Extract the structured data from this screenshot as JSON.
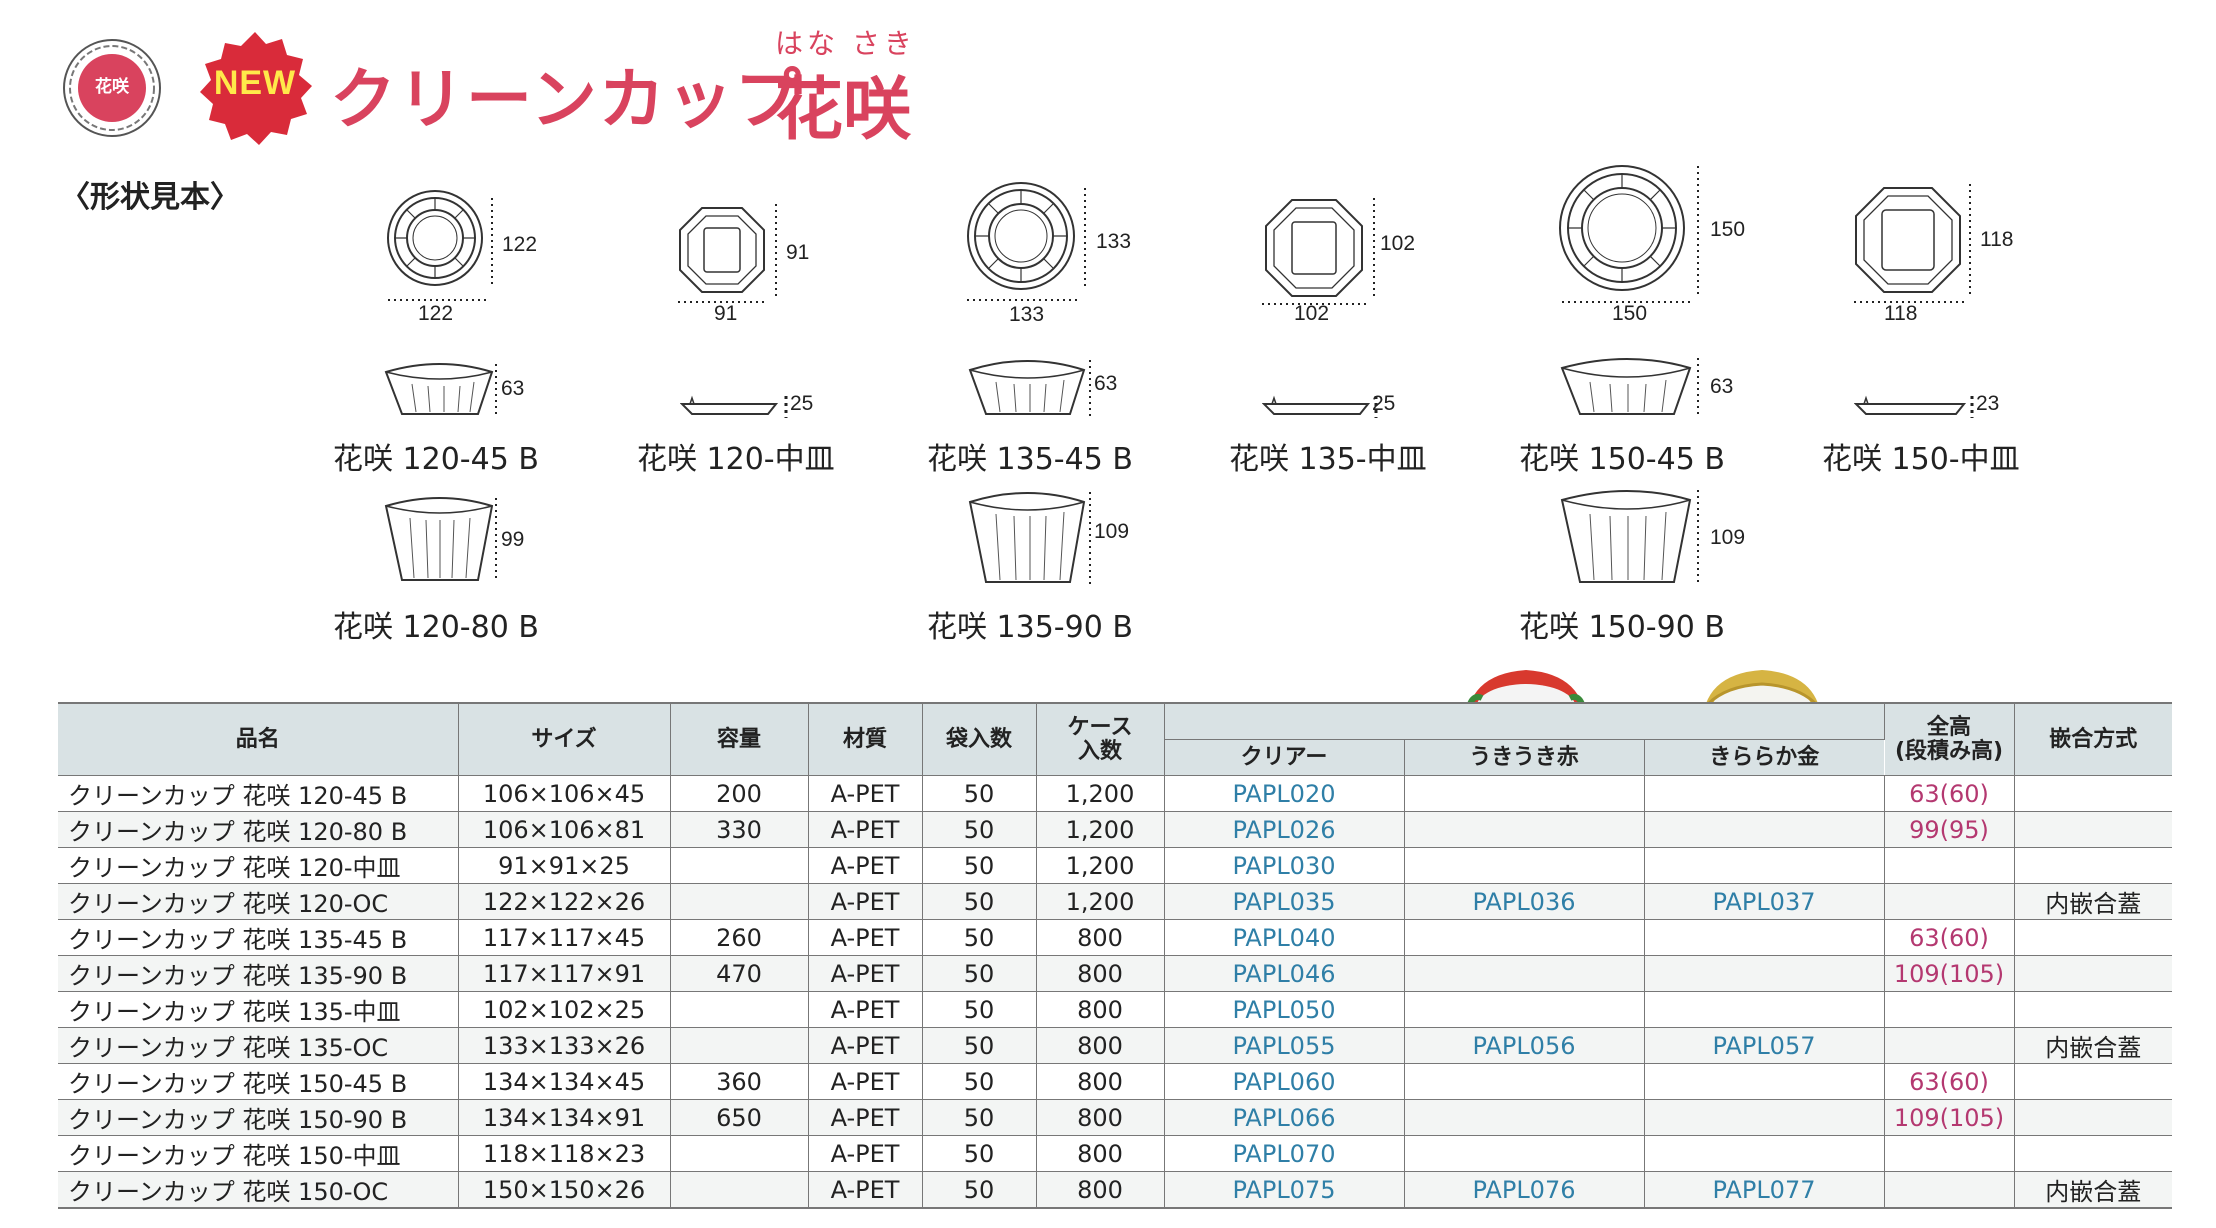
{
  "header": {
    "seal_text": "花咲",
    "badge": "NEW",
    "title_main": "クリーンカップ",
    "title_ruby": "はな さき",
    "title_sub": "花咲"
  },
  "section_label": "〈形状見本〉",
  "shapes": [
    {
      "name": "花咲 120-45 B",
      "top_w": "122",
      "top_h": "122",
      "side_h": "63"
    },
    {
      "name": "花咲 120-中皿",
      "top_w": "91",
      "top_h": "91",
      "side_h": "25"
    },
    {
      "name": "花咲 135-45 B",
      "top_w": "133",
      "top_h": "133",
      "side_h": "63"
    },
    {
      "name": "花咲 135-中皿",
      "top_w": "102",
      "top_h": "102",
      "side_h": "25"
    },
    {
      "name": "花咲 150-45 B",
      "top_w": "150",
      "top_h": "150",
      "side_h": "63"
    },
    {
      "name": "花咲 150-中皿",
      "top_w": "118",
      "top_h": "118",
      "side_h": "23"
    },
    {
      "name": "花咲 120-80 B",
      "side_h": "99"
    },
    {
      "name": "花咲 135-90 B",
      "side_h": "109"
    },
    {
      "name": "花咲 150-90 B",
      "side_h": "109"
    }
  ],
  "table": {
    "headers": {
      "name": "品名",
      "size": "サイズ",
      "capacity": "容量",
      "material": "材質",
      "bag_qty": "袋入数",
      "case_qty_1": "ケース",
      "case_qty_2": "入数",
      "clear": "クリアー",
      "red": "うきうき赤",
      "gold": "きららか金",
      "height_1": "全高",
      "height_2": "(段積み高)",
      "fit": "嵌合方式"
    },
    "rows": [
      {
        "name": "クリーンカップ 花咲 120-45 B",
        "size": "106×106×45",
        "capacity": "200",
        "material": "A-PET",
        "bag": "50",
        "case": "1,200",
        "clear": "PAPL020",
        "red": "",
        "gold": "",
        "height": "63(60)",
        "fit": ""
      },
      {
        "name": "クリーンカップ 花咲 120-80 B",
        "size": "106×106×81",
        "capacity": "330",
        "material": "A-PET",
        "bag": "50",
        "case": "1,200",
        "clear": "PAPL026",
        "red": "",
        "gold": "",
        "height": "99(95)",
        "fit": ""
      },
      {
        "name": "クリーンカップ 花咲 120-中皿",
        "size": "91×91×25",
        "capacity": "",
        "material": "A-PET",
        "bag": "50",
        "case": "1,200",
        "clear": "PAPL030",
        "red": "",
        "gold": "",
        "height": "",
        "fit": ""
      },
      {
        "name": "クリーンカップ 花咲 120-OC",
        "size": "122×122×26",
        "capacity": "",
        "material": "A-PET",
        "bag": "50",
        "case": "1,200",
        "clear": "PAPL035",
        "red": "PAPL036",
        "gold": "PAPL037",
        "height": "",
        "fit": "内嵌合蓋"
      },
      {
        "name": "クリーンカップ 花咲 135-45 B",
        "size": "117×117×45",
        "capacity": "260",
        "material": "A-PET",
        "bag": "50",
        "case": "800",
        "clear": "PAPL040",
        "red": "",
        "gold": "",
        "height": "63(60)",
        "fit": ""
      },
      {
        "name": "クリーンカップ 花咲 135-90 B",
        "size": "117×117×91",
        "capacity": "470",
        "material": "A-PET",
        "bag": "50",
        "case": "800",
        "clear": "PAPL046",
        "red": "",
        "gold": "",
        "height": "109(105)",
        "fit": ""
      },
      {
        "name": "クリーンカップ 花咲 135-中皿",
        "size": "102×102×25",
        "capacity": "",
        "material": "A-PET",
        "bag": "50",
        "case": "800",
        "clear": "PAPL050",
        "red": "",
        "gold": "",
        "height": "",
        "fit": ""
      },
      {
        "name": "クリーンカップ 花咲 135-OC",
        "size": "133×133×26",
        "capacity": "",
        "material": "A-PET",
        "bag": "50",
        "case": "800",
        "clear": "PAPL055",
        "red": "PAPL056",
        "gold": "PAPL057",
        "height": "",
        "fit": "内嵌合蓋"
      },
      {
        "name": "クリーンカップ 花咲 150-45 B",
        "size": "134×134×45",
        "capacity": "360",
        "material": "A-PET",
        "bag": "50",
        "case": "800",
        "clear": "PAPL060",
        "red": "",
        "gold": "",
        "height": "63(60)",
        "fit": ""
      },
      {
        "name": "クリーンカップ 花咲 150-90 B",
        "size": "134×134×91",
        "capacity": "650",
        "material": "A-PET",
        "bag": "50",
        "case": "800",
        "clear": "PAPL066",
        "red": "",
        "gold": "",
        "height": "109(105)",
        "fit": ""
      },
      {
        "name": "クリーンカップ 花咲 150-中皿",
        "size": "118×118×23",
        "capacity": "",
        "material": "A-PET",
        "bag": "50",
        "case": "800",
        "clear": "PAPL070",
        "red": "",
        "gold": "",
        "height": "",
        "fit": ""
      },
      {
        "name": "クリーンカップ 花咲 150-OC",
        "size": "150×150×26",
        "capacity": "",
        "material": "A-PET",
        "bag": "50",
        "case": "800",
        "clear": "PAPL075",
        "red": "PAPL076",
        "gold": "PAPL077",
        "height": "",
        "fit": "内嵌合蓋"
      }
    ]
  },
  "colors": {
    "title": "#d9435e",
    "code": "#2f7fa7",
    "height": "#b43870",
    "header_bg": "#d9e2e4",
    "badge": "#d92b3a"
  }
}
